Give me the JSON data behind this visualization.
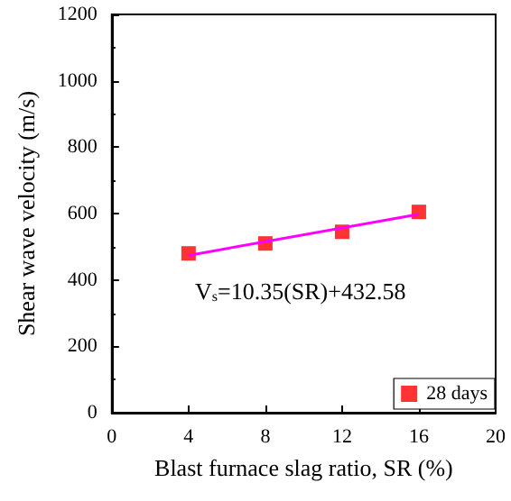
{
  "chart_data": {
    "type": "scatter",
    "xlabel": "Blast furnace slag ratio, SR (%)",
    "ylabel": "Shear wave velocity (m/s)",
    "series": [
      {
        "name": "28 days",
        "color": "#ff0000",
        "marker": "square",
        "x": [
          4,
          8,
          12,
          16
        ],
        "values": [
          480,
          510,
          545,
          605
        ]
      },
      {
        "type": "line",
        "color": "#ff00ff",
        "marker": "none",
        "line_style": "solid",
        "x": [
          4,
          16
        ],
        "values": [
          474,
          598
        ]
      }
    ],
    "xlim": [
      0,
      20
    ],
    "xticks": [
      0,
      4,
      8,
      12,
      16,
      20
    ],
    "ylim": [
      0,
      1200
    ],
    "yticks": [
      0,
      200,
      400,
      600,
      800,
      1000,
      1200
    ],
    "annotations": [
      "V$_{s}$=10.35(SR)+432.58"
    ],
    "grid": false,
    "legend": "bottom right"
  }
}
